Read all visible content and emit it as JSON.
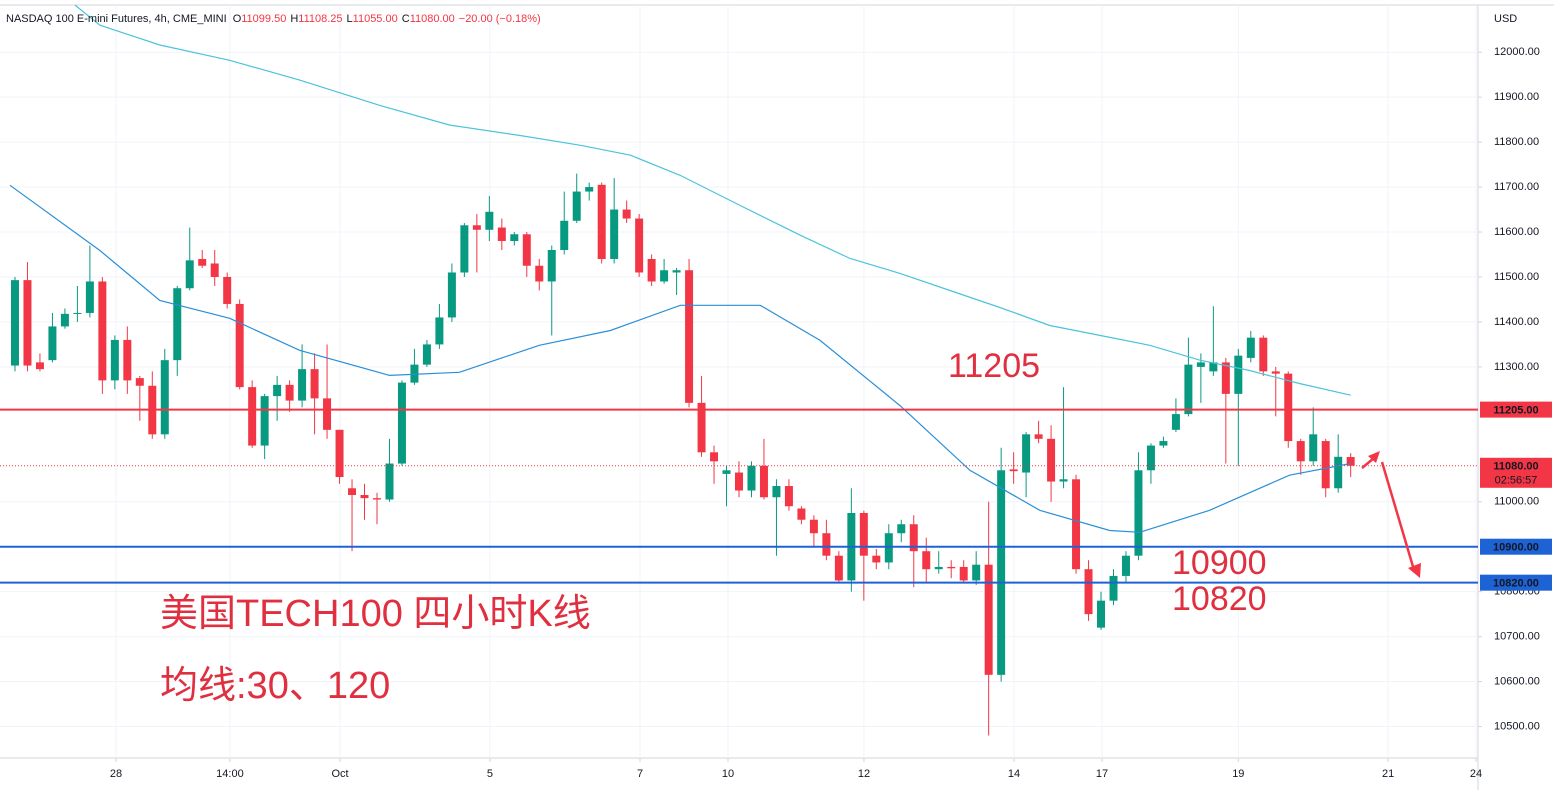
{
  "header": {
    "symbol": "NASDAQ 100 E-mini Futures, 4h, CME_MINI",
    "ohlc": [
      {
        "label": "O",
        "value": "11099.50"
      },
      {
        "label": "H",
        "value": "11108.25"
      },
      {
        "label": "L",
        "value": "11055.00"
      },
      {
        "label": "C",
        "value": "11080.00"
      }
    ],
    "change": "−20.00 (−0.18%)"
  },
  "chart_data": {
    "type": "candlestick",
    "currency": "USD",
    "up_color": "#089981",
    "down_color": "#f23645",
    "open": [
      11303,
      11493,
      11310,
      11315,
      11390,
      11418,
      11420,
      11490,
      11270,
      11360,
      11275,
      11258,
      11150,
      11315,
      11475,
      11540,
      11530,
      11500,
      11440,
      11255,
      11125,
      11235,
      11260,
      11225,
      11295,
      11230,
      11160,
      11030,
      11015,
      11008,
      11005,
      11085,
      11265,
      11305,
      11350,
      11410,
      11510,
      11615,
      11605,
      11610,
      11580,
      11595,
      11525,
      11490,
      11560,
      11625,
      11690,
      11705,
      11540,
      11650,
      11630,
      11540,
      11490,
      11510,
      11515,
      11220,
      11110,
      11062,
      11065,
      11025,
      11080,
      11010,
      11035,
      10985,
      10960,
      10930,
      10880,
      10825,
      10975,
      10880,
      10865,
      10930,
      10950,
      10890,
      10850,
      10855,
      10855,
      10825,
      10860,
      10615,
      11072,
      11065,
      11150,
      11140,
      11045,
      11050,
      10850,
      10720,
      10780,
      10835,
      10880,
      11070,
      11125,
      11160,
      11195,
      11300,
      11290,
      11310,
      11240,
      11320,
      11365,
      11290,
      11285,
      11135,
      11090,
      11135,
      11030,
      11099.5
    ],
    "high": [
      11500,
      11533,
      11330,
      11420,
      11430,
      11480,
      11570,
      11500,
      11370,
      11390,
      11280,
      11290,
      11340,
      11480,
      11610,
      11560,
      11560,
      11510,
      11450,
      11270,
      11240,
      11280,
      11270,
      11350,
      11330,
      11350,
      11160,
      11050,
      11040,
      11020,
      11140,
      11270,
      11340,
      11360,
      11440,
      11530,
      11620,
      11640,
      11680,
      11630,
      11600,
      11600,
      11540,
      11570,
      11690,
      11730,
      11710,
      11710,
      11720,
      11670,
      11640,
      11550,
      11540,
      11520,
      11540,
      11280,
      11125,
      11080,
      11090,
      11090,
      11140,
      11050,
      11050,
      10990,
      10970,
      10960,
      10890,
      11030,
      10980,
      10895,
      10950,
      10960,
      10970,
      10920,
      10890,
      10870,
      10870,
      10890,
      11000,
      11120,
      11110,
      11155,
      11180,
      11170,
      11255,
      11060,
      10870,
      10800,
      10850,
      10890,
      11110,
      11130,
      11145,
      11230,
      11365,
      11330,
      11435,
      11320,
      11340,
      11380,
      11370,
      11300,
      11290,
      11140,
      11210,
      11140,
      11150,
      11108.25
    ],
    "low": [
      11290,
      11290,
      11290,
      11310,
      11385,
      11400,
      11410,
      11240,
      11250,
      11240,
      11180,
      11140,
      11140,
      11280,
      11470,
      11520,
      11480,
      11430,
      11250,
      11120,
      11095,
      11180,
      11200,
      11210,
      11150,
      11140,
      11040,
      10890,
      10960,
      10950,
      11000,
      11080,
      11260,
      11300,
      11340,
      11400,
      11500,
      11510,
      11580,
      11560,
      11570,
      11500,
      11470,
      11370,
      11550,
      11620,
      11670,
      11530,
      11530,
      11620,
      11500,
      11480,
      11485,
      11460,
      11210,
      11100,
      11040,
      10990,
      11010,
      11010,
      11005,
      10880,
      10980,
      10950,
      10900,
      10870,
      10820,
      10800,
      10780,
      10850,
      10850,
      10910,
      10810,
      10820,
      10840,
      10830,
      10820,
      10815,
      10480,
      10600,
      11040,
      11010,
      11130,
      11000,
      11030,
      10840,
      10735,
      10715,
      10770,
      10820,
      10870,
      11040,
      11120,
      11155,
      11190,
      11220,
      11280,
      11085,
      11080,
      11310,
      11280,
      11190,
      11120,
      11060,
      11080,
      11010,
      11020,
      11055
    ],
    "close": [
      11493,
      11303,
      11295,
      11390,
      11418,
      11420,
      11490,
      11270,
      11360,
      11270,
      11258,
      11150,
      11315,
      11475,
      11537,
      11525,
      11500,
      11440,
      11255,
      11125,
      11235,
      11260,
      11225,
      11295,
      11230,
      11160,
      11055,
      11015,
      11008,
      11005,
      11085,
      11265,
      11305,
      11350,
      11410,
      11510,
      11615,
      11605,
      11645,
      11580,
      11595,
      11525,
      11490,
      11560,
      11625,
      11690,
      11700,
      11540,
      11650,
      11630,
      11510,
      11490,
      11515,
      11515,
      11220,
      11110,
      11090,
      11070,
      11025,
      11080,
      11010,
      11035,
      10990,
      10960,
      10930,
      10880,
      10825,
      10975,
      10880,
      10865,
      10930,
      10950,
      10890,
      10850,
      10855,
      10852,
      10825,
      10860,
      10615,
      11070,
      11068,
      11150,
      11140,
      11045,
      11050,
      10850,
      10750,
      10780,
      10835,
      10880,
      11070,
      11125,
      11135,
      11195,
      11305,
      11310,
      11310,
      11240,
      11325,
      11365,
      11290,
      11285,
      11135,
      11090,
      11150,
      11030,
      11100,
      11080
    ],
    "series": [
      {
        "color": "#2a8fd8",
        "x": [
          -0.4,
          6.8,
          11.6,
          17.2,
          22.8,
          30,
          35.6,
          42,
          47.7,
          53.3,
          59.7,
          64.5,
          70.9,
          76.5,
          82.1,
          87.7,
          90.1,
          95.7,
          102.1,
          107
        ],
        "values": [
          11704,
          11559,
          11448,
          11408,
          11337,
          11281,
          11288,
          11348,
          11381,
          11437,
          11437,
          11359,
          11214,
          11070,
          10981,
          10936,
          10932,
          10981,
          11059,
          11085
        ]
      },
      {
        "color": "#4cc3dc",
        "x": [
          4.8,
          6.8,
          11.6,
          17.2,
          22.8,
          29.2,
          34.8,
          40.4,
          45.3,
          49.3,
          53.3,
          58.1,
          62.9,
          66.9,
          70.9,
          74.9,
          78.9,
          82.9,
          86.9,
          90.9,
          94.9,
          98.9,
          102.9,
          107
        ],
        "values": [
          12105,
          12060,
          12016,
          11982,
          11938,
          11882,
          11838,
          11815,
          11793,
          11771,
          11726,
          11659,
          11593,
          11541,
          11508,
          11470,
          11432,
          11392,
          11370,
          11348,
          11315,
          11292,
          11263,
          11237
        ]
      }
    ],
    "levels": [
      {
        "value": 11205,
        "label": "11205.00",
        "color": "#f23645"
      },
      {
        "value": 10900,
        "label": "10900.00",
        "color": "#1e63d6"
      },
      {
        "value": 10820,
        "label": "10820.00",
        "color": "#1e63d6"
      }
    ],
    "last_price": {
      "value": 11080,
      "label": "11080.00",
      "countdown": "02:56:57",
      "color": "#f23645"
    },
    "xlim": [
      -1.2,
      117.2
    ],
    "ylim": [
      10430,
      12105
    ],
    "xticks": [
      {
        "value": 8.09,
        "label": "28"
      },
      {
        "value": 17.22,
        "label": "14:00"
      },
      {
        "value": 26.04,
        "label": "Oct"
      },
      {
        "value": 38.05,
        "label": "5"
      },
      {
        "value": 50.07,
        "label": "7"
      },
      {
        "value": 57.12,
        "label": "10"
      },
      {
        "value": 68.01,
        "label": "12"
      },
      {
        "value": 80.03,
        "label": "14"
      },
      {
        "value": 87.08,
        "label": "17"
      },
      {
        "value": 98.0,
        "label": "19"
      },
      {
        "value": 110.0,
        "label": "21"
      },
      {
        "value": 117.04,
        "label": "24"
      }
    ],
    "yticks": [
      {
        "value": 12000,
        "label": "12000.00"
      },
      {
        "value": 11900,
        "label": "11900.00"
      },
      {
        "value": 11800,
        "label": "11800.00"
      },
      {
        "value": 11700,
        "label": "11700.00"
      },
      {
        "value": 11600,
        "label": "11600.00"
      },
      {
        "value": 11500,
        "label": "11500.00"
      },
      {
        "value": 11400,
        "label": "11400.00"
      },
      {
        "value": 11300,
        "label": "11300.00"
      },
      {
        "value": 11000,
        "label": "11000.00"
      },
      {
        "value": 10800,
        "label": "10800.00"
      },
      {
        "value": 10700,
        "label": "10700.00"
      },
      {
        "value": 10600,
        "label": "10600.00"
      },
      {
        "value": 10500,
        "label": "10500.00"
      }
    ],
    "grid": true,
    "annotations": [
      "11205",
      "10900",
      "10820",
      "美国TECH100 四小时K线",
      "均线:30、120"
    ]
  }
}
